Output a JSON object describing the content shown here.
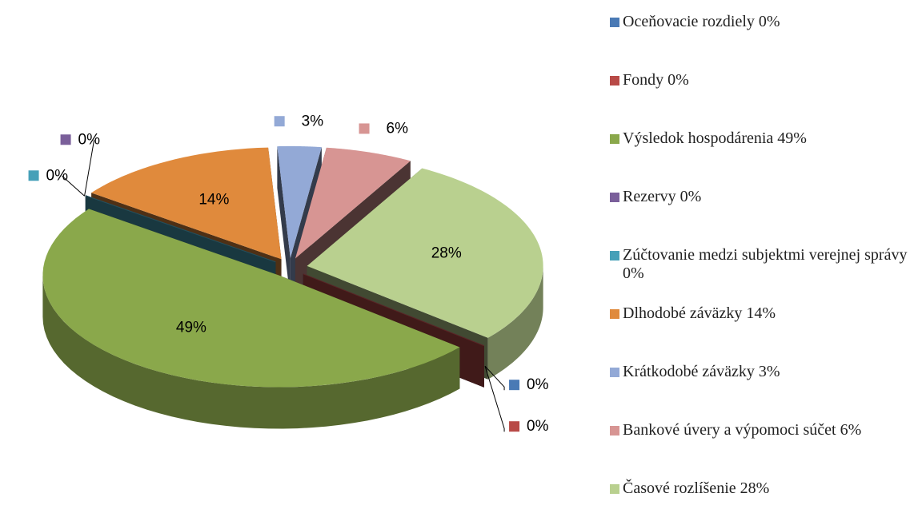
{
  "chart_data": {
    "type": "pie",
    "three_d": true,
    "categories": [
      "Oceňovacie rozdiely 0%",
      "Fondy 0%",
      "Výsledok hospodárenia 49%",
      "Rezervy 0%",
      "Zúčtovanie medzi subjektmi verejnej správy 0%",
      "Dlhodobé záväzky 14%",
      "Krátkodobé záväzky 3%",
      "Bankové úvery a výpomoci súčet 6%",
      "Časové rozlíšenie 28%"
    ],
    "values": [
      0,
      0,
      49,
      0,
      0,
      14,
      3,
      6,
      28
    ],
    "value_labels": [
      "0%",
      "0%",
      "49%",
      "0%",
      "0%",
      "14%",
      "3%",
      "6%",
      "28%"
    ],
    "colors": [
      "#4a7ab5",
      "#b84a47",
      "#8aa84b",
      "#7a5f9a",
      "#46a0b8",
      "#e08a3c",
      "#93a9d6",
      "#d79593",
      "#b9d08f"
    ],
    "legend": "right"
  }
}
